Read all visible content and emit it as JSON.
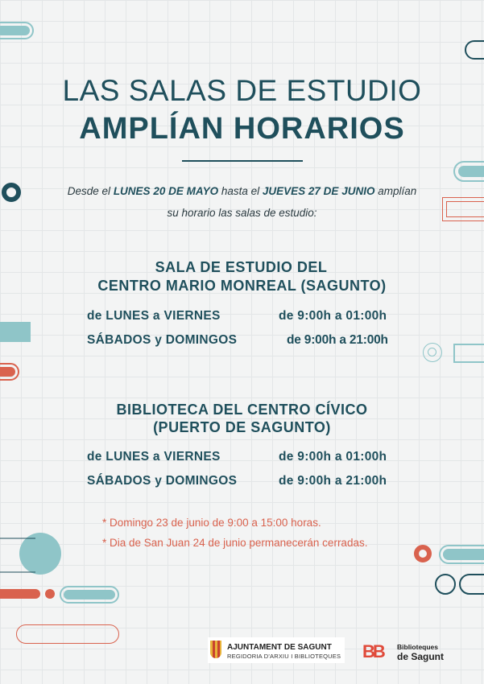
{
  "title": {
    "line1": "LAS SALAS DE ESTUDIO",
    "line2": "AMPLÍAN HORARIOS"
  },
  "intro": {
    "pre": "Desde el ",
    "start": "LUNES 20 DE MAYO",
    "mid": " hasta el ",
    "end": "JUEVES 27 DE JUNIO",
    "post": " amplían",
    "line2": "su horario las salas de estudio:"
  },
  "sections": [
    {
      "line1": "SALA  DE ESTUDIO DEL",
      "line2": "CENTRO MARIO MONREAL (SAGUNTO)",
      "rows": [
        {
          "days": "de LUNES a VIERNES",
          "hours": "de 9:00h a 01:00h"
        },
        {
          "days": "SÁBADOS y DOMINGOS",
          "hours": "de 9:00h a 21:00h"
        }
      ]
    },
    {
      "line1": "BIBLIOTECA DEL CENTRO CÍVICO",
      "line2": "(PUERTO DE SAGUNTO)",
      "rows": [
        {
          "days": "de LUNES a VIERNES",
          "hours": "de 9:00h a 01:00h"
        },
        {
          "days": "SÁBADOS y DOMINGOS",
          "hours": "de 9:00h a 21:00h"
        }
      ]
    }
  ],
  "notes": [
    "* Domingo 23 de junio de 9:00 a 15:00 horas.",
    "* Dia de San Juan 24 de junio permanecerán cerradas."
  ],
  "footer": {
    "ajuntament": "AJUNTAMENT DE SAGUNT",
    "regidoria": "REGIDORIA D'ARXIU I BIBLIOTEQUES",
    "bib_logo": "BB",
    "bib_line1": "Biblioteques",
    "bib_line2": "de Sagunt"
  },
  "colors": {
    "dark_teal": "#1f4f5c",
    "light_teal": "#8fc5c8",
    "red": "#d9624e"
  }
}
